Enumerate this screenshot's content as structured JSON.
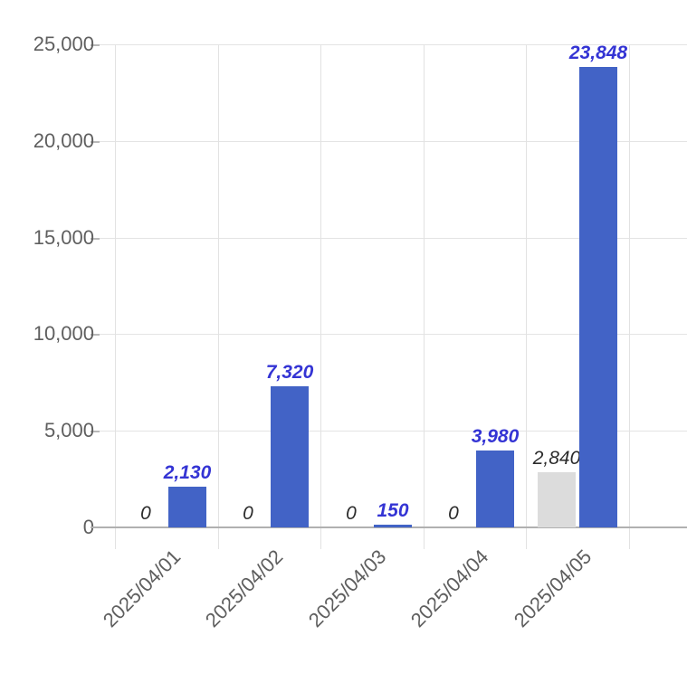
{
  "chart_data": {
    "type": "bar",
    "title": "",
    "xlabel": "",
    "ylabel": "",
    "categories": [
      "2025/04/01",
      "2025/04/02",
      "2025/04/03",
      "2025/04/04",
      "2025/04/05"
    ],
    "series": [
      {
        "name": "series-1-gray",
        "color": "#dcdcdc",
        "values": [
          0,
          0,
          0,
          0,
          2840
        ],
        "labels": [
          "0",
          "0",
          "0",
          "0",
          "2,840"
        ],
        "label_color": "#2b2b2b",
        "label_weight": "normal"
      },
      {
        "name": "series-2-blue",
        "color": "#4263c6",
        "values": [
          2130,
          7320,
          150,
          3980,
          23848
        ],
        "labels": [
          "2,130",
          "7,320",
          "150",
          "3,980",
          "23,848"
        ],
        "label_color": "#3434d4",
        "label_weight": "bold"
      }
    ],
    "ylim": [
      0,
      25000
    ],
    "y_tick_interval": 5000,
    "y_tick_labels": [
      "25,000",
      "20,000",
      "15,000",
      "10,000",
      "5,000",
      "0"
    ],
    "grid": true,
    "legend": "none",
    "x_tick_rotation_deg": 45,
    "colors": {
      "background": "#ffffff",
      "gridline": "#e2e2e2",
      "axis_line": "#b0b0b0",
      "tick_label": "#5f5f5f"
    }
  }
}
